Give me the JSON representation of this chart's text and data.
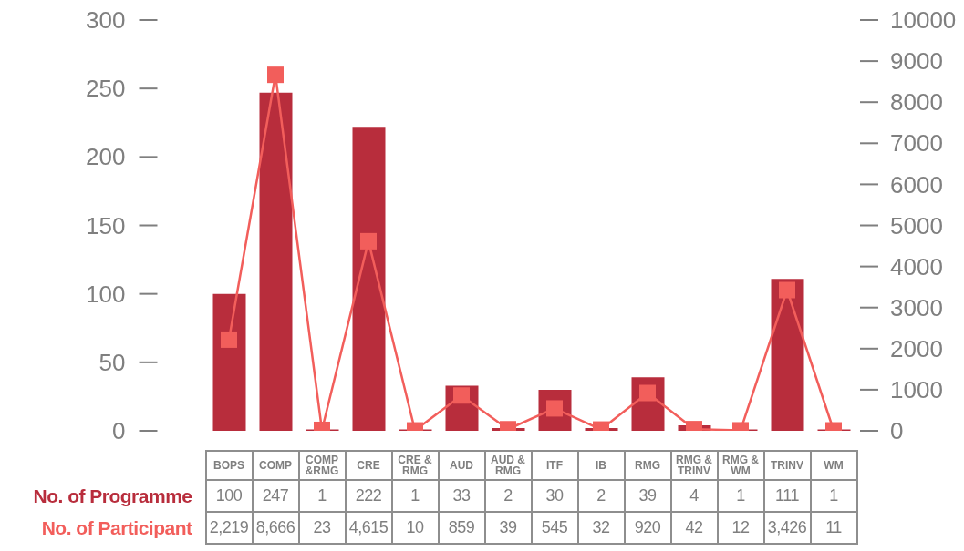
{
  "chart_data": {
    "type": "bar",
    "categories": [
      "BOPS",
      "COMP",
      "COMP &RMG",
      "CRE",
      "CRE & RMG",
      "AUD",
      "AUD & RMG",
      "ITF",
      "IB",
      "RMG",
      "RMG & TRINV",
      "RMG & WM",
      "TRINV",
      "WM"
    ],
    "series": [
      {
        "name": "No. of Programme",
        "color": "#b82d3c",
        "values": [
          100,
          247,
          1,
          222,
          1,
          33,
          2,
          30,
          2,
          39,
          4,
          1,
          111,
          1
        ],
        "value_labels": [
          "100",
          "247",
          "1",
          "222",
          "1",
          "33",
          "2",
          "30",
          "2",
          "39",
          "4",
          "1",
          "111",
          "1"
        ]
      },
      {
        "name": "No. of Participant",
        "type": "line",
        "axis": "y2",
        "color": "#f25e5b",
        "values": [
          2219,
          8666,
          23,
          4615,
          10,
          859,
          39,
          545,
          32,
          920,
          42,
          12,
          3426,
          11
        ],
        "value_labels": [
          "2,219",
          "8,666",
          "23",
          "4,615",
          "10",
          "859",
          "39",
          "545",
          "32",
          "920",
          "42",
          "12",
          "3,426",
          "11"
        ]
      }
    ],
    "marker": "square",
    "ylim": [
      0,
      300
    ],
    "yticks": [
      0,
      50,
      100,
      150,
      200,
      250,
      300
    ],
    "y2lim": [
      0,
      10000
    ],
    "y2ticks": [
      0,
      1000,
      2000,
      3000,
      4000,
      5000,
      6000,
      7000,
      8000,
      9000,
      10000
    ]
  }
}
